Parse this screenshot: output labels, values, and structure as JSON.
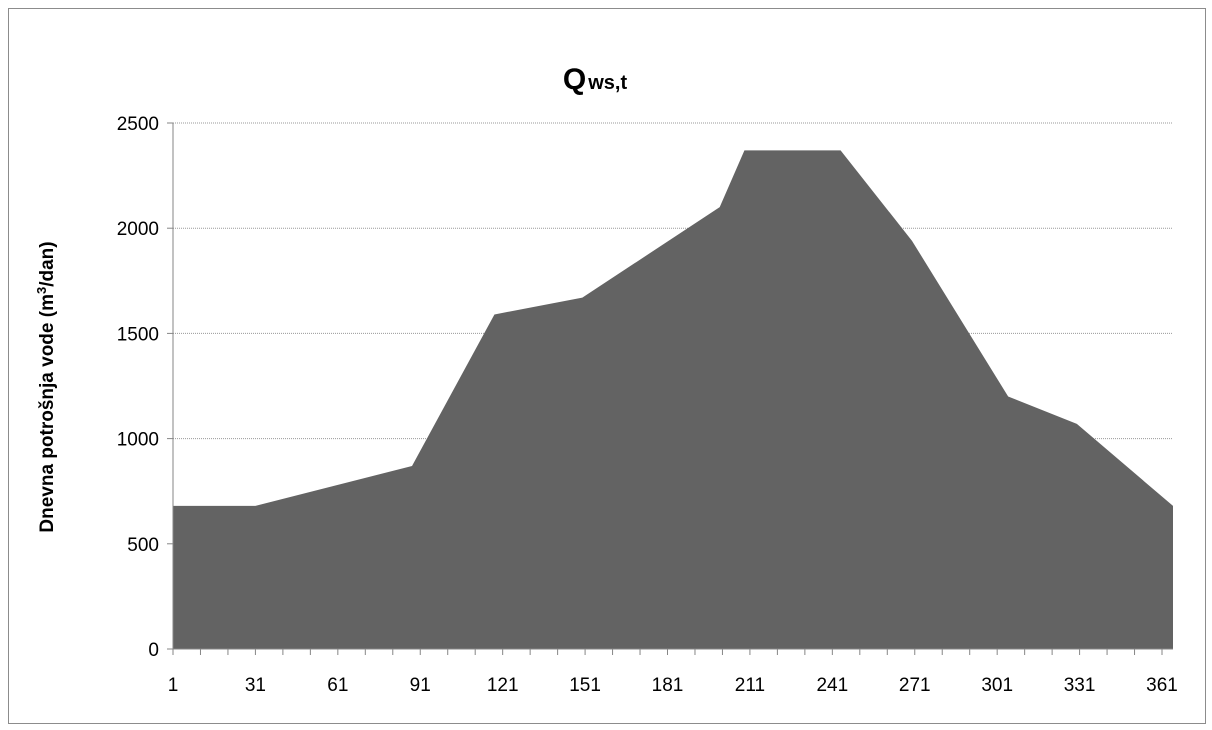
{
  "chart_data": {
    "type": "area",
    "title": "Q",
    "title_subscript": "ws,t",
    "xlabel": "",
    "ylabel": "Dnevna potrošnja vode (m",
    "ylabel_superscript": "3",
    "ylabel_suffix": "/dan)",
    "xlim": [
      1,
      365
    ],
    "ylim": [
      0,
      2500
    ],
    "x_ticks": [
      1,
      31,
      61,
      91,
      121,
      151,
      181,
      211,
      241,
      271,
      301,
      331,
      361
    ],
    "y_ticks": [
      0,
      500,
      1000,
      1500,
      2000,
      2500
    ],
    "grid": "horizontal",
    "legend": "none",
    "series": [
      {
        "color": "#636363",
        "x": [
          1,
          31,
          88,
          118,
          150,
          200,
          209,
          244,
          270,
          305,
          330,
          365
        ],
        "values": [
          680,
          680,
          870,
          1590,
          1670,
          2100,
          2370,
          2370,
          1940,
          1200,
          1070,
          680
        ]
      }
    ]
  }
}
